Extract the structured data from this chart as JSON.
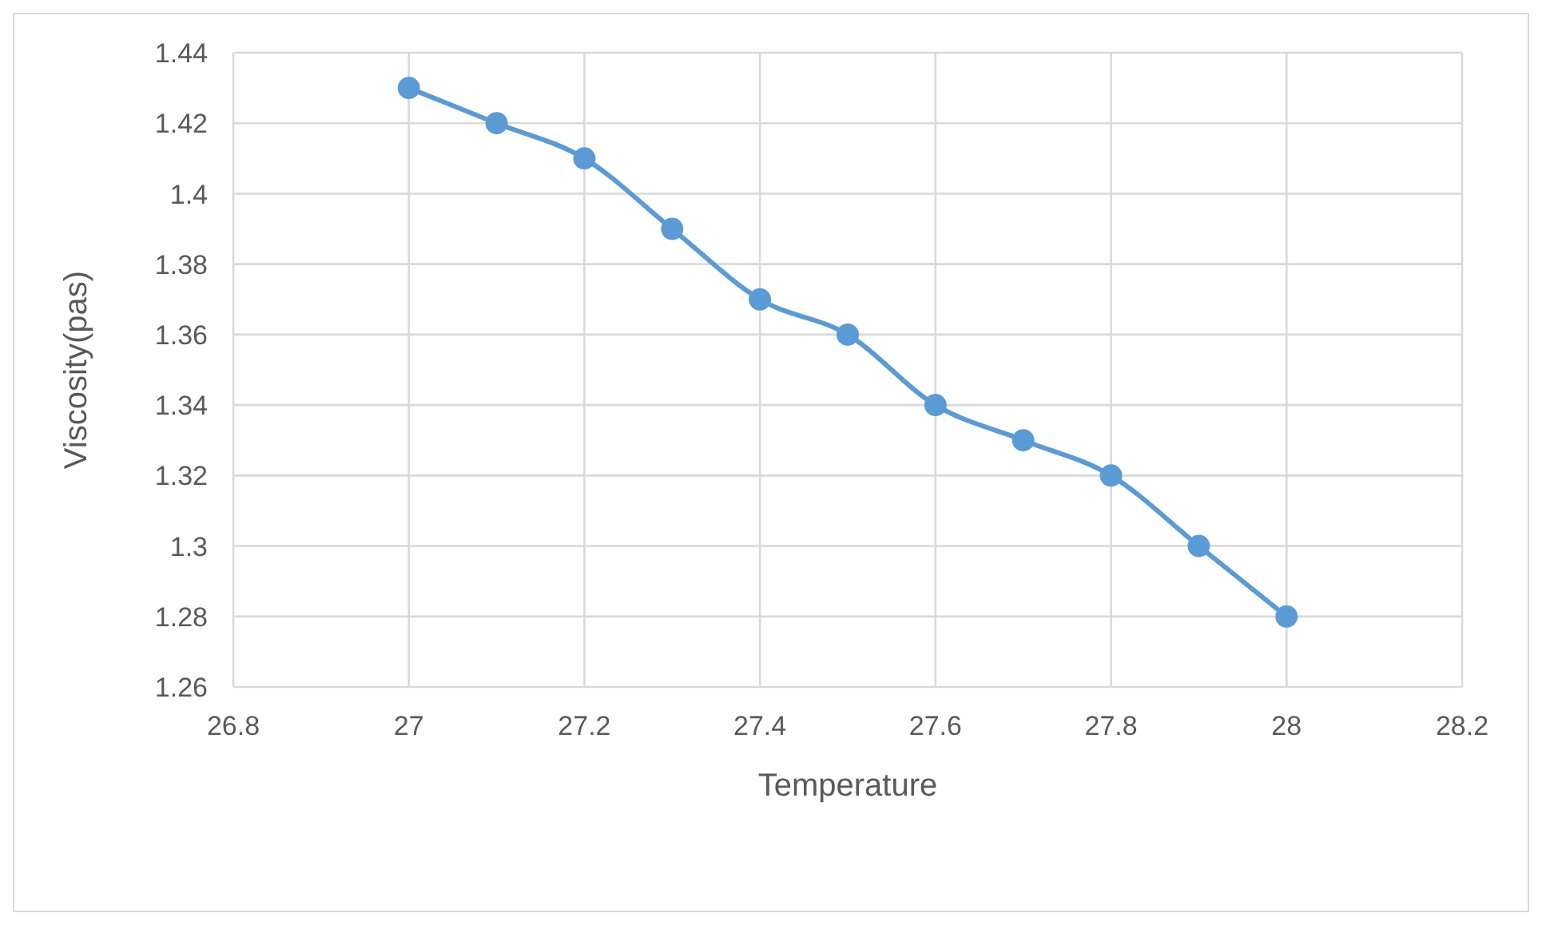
{
  "chart_data": {
    "type": "line",
    "xlabel": "Temperature",
    "ylabel": "Viscosity(pas)",
    "x": [
      27,
      27.1,
      27.2,
      27.3,
      27.4,
      27.5,
      27.6,
      27.7,
      27.8,
      27.9,
      28
    ],
    "series": [
      {
        "color": "#5b9bd5",
        "values": [
          1.43,
          1.42,
          1.41,
          1.39,
          1.37,
          1.36,
          1.34,
          1.33,
          1.32,
          1.3,
          1.28
        ]
      }
    ],
    "xlim": [
      26.8,
      28.2
    ],
    "xticks": [
      26.8,
      27,
      27.2,
      27.4,
      27.6,
      27.8,
      28,
      28.2
    ],
    "ylim": [
      1.26,
      1.44
    ],
    "yticks": [
      1.26,
      1.28,
      1.3,
      1.32,
      1.34,
      1.36,
      1.38,
      1.4,
      1.42,
      1.44
    ],
    "grid": true,
    "marker": "circle",
    "line_style": "solid",
    "legend": false
  }
}
